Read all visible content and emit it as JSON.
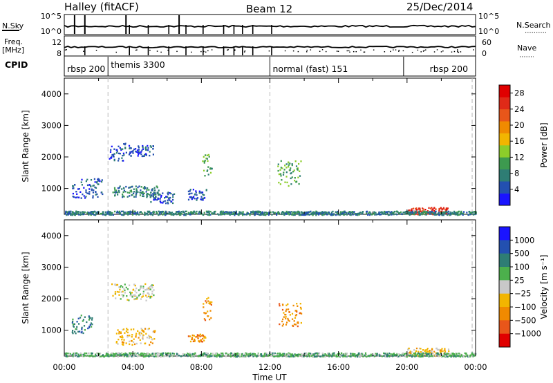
{
  "header": {
    "station": "Halley (fitACF)",
    "beam": "Beam 12",
    "date": "25/Dec/2014"
  },
  "status_panels": {
    "left_labels": {
      "nsky": "N.Sky",
      "freq": "Freq.",
      "freq_unit": "[MHz]",
      "cpid": "CPID"
    },
    "right_labels": {
      "nsearch": "N.Search",
      "nave": "Nave"
    },
    "nsky_ticks": [
      "10^5",
      "10^0"
    ],
    "nsearch_ticks": [
      "10^5",
      "10^0"
    ],
    "freq_ticks": [
      "12",
      "8"
    ],
    "nave_ticks": [
      "60",
      "0"
    ],
    "cpid_segments": [
      {
        "label": "rbsp 200",
        "start": 0.0,
        "end": 2.55
      },
      {
        "label": "themis 3300",
        "start": 2.55,
        "end": 12.0
      },
      {
        "label": "normal (fast) 151",
        "start": 12.0,
        "end": 19.8
      },
      {
        "label": "rbsp 200",
        "start": 19.8,
        "end": 23.8
      }
    ],
    "freq_spike_times": [
      1.2,
      3.8,
      4.9,
      6.1,
      7.1,
      8.1,
      9.3,
      9.9,
      10.4,
      11.0,
      12.1
    ]
  },
  "chart_data": [
    {
      "type": "heatmap",
      "name": "power",
      "ylabel": "Slant Range [km]",
      "xlabel": "",
      "xlim": [
        0,
        24
      ],
      "ylim": [
        180,
        4500
      ],
      "y_ticks": [
        1000,
        2000,
        3000,
        4000
      ],
      "colorbar": {
        "label": "Power [dB]",
        "ticks": [
          "4",
          "8",
          "12",
          "16",
          "20",
          "24",
          "28"
        ],
        "colors": [
          "#1a14ff",
          "#2350b0",
          "#2e7d74",
          "#3d9a4f",
          "#8ccd2a",
          "#f2b500",
          "#f08a00",
          "#e8561a",
          "#e02a18",
          "#e00000"
        ]
      },
      "echo_regions": [
        {
          "t0": 0.4,
          "t1": 2.2,
          "r0": 700,
          "r1": 1400,
          "level": 1
        },
        {
          "t0": 2.6,
          "t1": 3.6,
          "r0": 1900,
          "r1": 2450,
          "level": 1
        },
        {
          "t0": 3.7,
          "t1": 5.2,
          "r0": 2050,
          "r1": 2400,
          "level": 1
        },
        {
          "t0": 2.8,
          "t1": 5.5,
          "r0": 750,
          "r1": 1100,
          "level": 2
        },
        {
          "t0": 5.0,
          "t1": 6.4,
          "r0": 550,
          "r1": 900,
          "level": 1
        },
        {
          "t0": 7.2,
          "t1": 8.3,
          "r0": 650,
          "r1": 1000,
          "level": 1
        },
        {
          "t0": 8.0,
          "t1": 8.6,
          "r0": 1400,
          "r1": 2100,
          "level": 3
        },
        {
          "t0": 12.4,
          "t1": 13.8,
          "r0": 1100,
          "r1": 1900,
          "level": 3
        },
        {
          "t0": 20.0,
          "t1": 22.4,
          "r0": 200,
          "r1": 420,
          "level": 8
        },
        {
          "t0": 0.0,
          "t1": 24.0,
          "r0": 180,
          "r1": 300,
          "level": 2
        }
      ],
      "vertical_markers": [
        2.55,
        12.0,
        23.8
      ]
    },
    {
      "type": "heatmap",
      "name": "velocity",
      "ylabel": "Slant Range [km]",
      "xlabel": "Time UT",
      "xlim": [
        0,
        24
      ],
      "ylim": [
        180,
        4500
      ],
      "x_ticks": [
        "00:00",
        "04:00",
        "08:00",
        "12:00",
        "16:00",
        "20:00",
        "00:00"
      ],
      "y_ticks": [
        1000,
        2000,
        3000,
        4000
      ],
      "colorbar": {
        "label": "Velocity [m s⁻¹]",
        "ticks": [
          "1000",
          "500",
          "100",
          "25",
          "−25",
          "−100",
          "−500",
          "−1000"
        ],
        "colors": [
          "#1a14ff",
          "#2350b0",
          "#2e7d74",
          "#4cb04c",
          "#c8c8c8",
          "#f2b500",
          "#f08a00",
          "#e8561a",
          "#e00000"
        ]
      },
      "echo_regions": [
        {
          "t0": 0.4,
          "t1": 1.6,
          "r0": 900,
          "r1": 1500,
          "level": 2
        },
        {
          "t0": 2.6,
          "t1": 5.2,
          "r0": 1950,
          "r1": 2500,
          "level": 4
        },
        {
          "t0": 3.0,
          "t1": 5.3,
          "r0": 550,
          "r1": 1100,
          "level": 5
        },
        {
          "t0": 7.2,
          "t1": 8.2,
          "r0": 650,
          "r1": 900,
          "level": 6
        },
        {
          "t0": 8.0,
          "t1": 8.6,
          "r0": 1300,
          "r1": 2100,
          "level": 6
        },
        {
          "t0": 12.4,
          "t1": 13.8,
          "r0": 1100,
          "r1": 1900,
          "level": 6
        },
        {
          "t0": 20.0,
          "t1": 22.5,
          "r0": 200,
          "r1": 450,
          "level": 5
        },
        {
          "t0": 0.0,
          "t1": 24.0,
          "r0": 180,
          "r1": 300,
          "level": 3
        }
      ],
      "vertical_markers": [
        2.55,
        12.0,
        23.8
      ]
    }
  ]
}
